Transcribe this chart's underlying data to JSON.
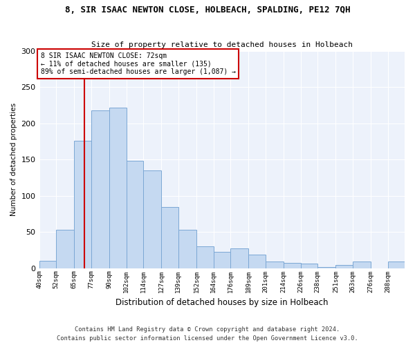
{
  "title1": "8, SIR ISAAC NEWTON CLOSE, HOLBEACH, SPALDING, PE12 7QH",
  "title2": "Size of property relative to detached houses in Holbeach",
  "xlabel": "Distribution of detached houses by size in Holbeach",
  "ylabel": "Number of detached properties",
  "bin_labels": [
    "40sqm",
    "52sqm",
    "65sqm",
    "77sqm",
    "90sqm",
    "102sqm",
    "114sqm",
    "127sqm",
    "139sqm",
    "152sqm",
    "164sqm",
    "176sqm",
    "189sqm",
    "201sqm",
    "214sqm",
    "226sqm",
    "238sqm",
    "251sqm",
    "263sqm",
    "276sqm",
    "288sqm"
  ],
  "bar_values": [
    10,
    53,
    176,
    218,
    222,
    148,
    135,
    85,
    53,
    30,
    23,
    27,
    19,
    9,
    7,
    6,
    2,
    4,
    9,
    0,
    9
  ],
  "bar_color": "#c5d9f1",
  "bar_edge_color": "#7ba7d4",
  "bin_edges": [
    40,
    52,
    65,
    77,
    90,
    102,
    114,
    127,
    139,
    152,
    164,
    176,
    189,
    201,
    214,
    226,
    238,
    251,
    263,
    276,
    288,
    300
  ],
  "vline_x": 72,
  "vline_color": "#cc0000",
  "annotation_text_line1": "8 SIR ISAAC NEWTON CLOSE: 72sqm",
  "annotation_text_line2": "← 11% of detached houses are smaller (135)",
  "annotation_text_line3": "89% of semi-detached houses are larger (1,087) →",
  "annotation_box_facecolor": "#ffffff",
  "annotation_box_edge": "#cc0000",
  "ylim": [
    0,
    300
  ],
  "yticks": [
    0,
    50,
    100,
    150,
    200,
    250,
    300
  ],
  "footer_line1": "Contains HM Land Registry data © Crown copyright and database right 2024.",
  "footer_line2": "Contains public sector information licensed under the Open Government Licence v3.0.",
  "bg_color": "#ffffff",
  "plot_bg_color": "#edf2fb"
}
